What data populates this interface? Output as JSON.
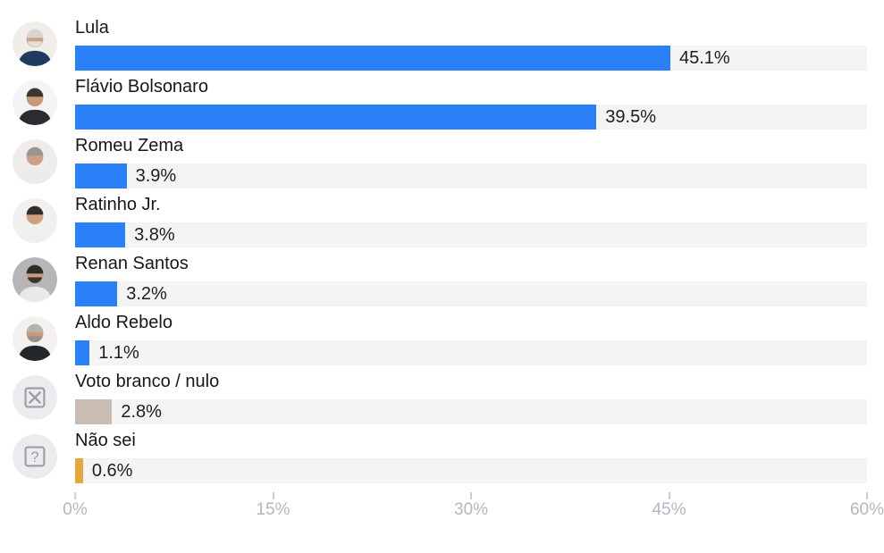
{
  "chart_data": {
    "type": "bar",
    "orientation": "horizontal",
    "title": "",
    "xlabel": "",
    "ylabel": "",
    "xlim": [
      0,
      60
    ],
    "grid": false,
    "legend": false,
    "track_color": "#f4f4f2",
    "colors": {
      "candidate_bar": "#2a80f6",
      "blank_null_bar": "#c9bcb2",
      "dont_know_bar": "#e6a83e",
      "axis_label": "#b2b6c0",
      "tick_mark": "#c9ccd3"
    },
    "x_ticks": [
      {
        "value": 0,
        "label": "0%"
      },
      {
        "value": 15,
        "label": "15%"
      },
      {
        "value": 30,
        "label": "30%"
      },
      {
        "value": 45,
        "label": "45%"
      },
      {
        "value": 60,
        "label": "60%"
      }
    ],
    "categories": [
      "Lula",
      "Flávio Bolsonaro",
      "Romeu Zema",
      "Ratinho Jr.",
      "Renan Santos",
      "Aldo Rebelo",
      "Voto branco / nulo",
      "Não sei"
    ],
    "values": [
      45.1,
      39.5,
      3.9,
      3.8,
      3.2,
      1.1,
      2.8,
      0.6
    ],
    "rows": [
      {
        "category": "Lula",
        "value": 45.1,
        "value_label": "45.1%",
        "bar_color": "#2a80f6",
        "avatar": {
          "kind": "photo",
          "name": "lula-avatar",
          "bg": "#f1eeea",
          "hair": "#d9d4cd",
          "skin": "#c9a184",
          "beard": "#e4dfd8",
          "torso": "#1e3a5f"
        }
      },
      {
        "category": "Flávio Bolsonaro",
        "value": 39.5,
        "value_label": "39.5%",
        "bar_color": "#2a80f6",
        "avatar": {
          "kind": "photo",
          "name": "flavio-bolsonaro-avatar",
          "bg": "#f4f4f6",
          "hair": "#3a352f",
          "skin": "#c89a76",
          "torso": "#2b2b30"
        }
      },
      {
        "category": "Romeu Zema",
        "value": 3.9,
        "value_label": "3.9%",
        "bar_color": "#2a80f6",
        "avatar": {
          "kind": "photo",
          "name": "romeu-zema-avatar",
          "bg": "#eeedeb",
          "hair": "#99968f",
          "skin": "#cda184",
          "torso": "#ecebe9"
        }
      },
      {
        "category": "Ratinho Jr.",
        "value": 3.8,
        "value_label": "3.8%",
        "bar_color": "#2a80f6",
        "avatar": {
          "kind": "photo",
          "name": "ratinho-jr-avatar",
          "bg": "#f1f0ee",
          "hair": "#342e29",
          "skin": "#cf9f80",
          "torso": "#f0efed"
        }
      },
      {
        "category": "Renan Santos",
        "value": 3.2,
        "value_label": "3.2%",
        "bar_color": "#2a80f6",
        "avatar": {
          "kind": "photo",
          "name": "renan-santos-avatar",
          "bg": "#b6b6b8",
          "hair": "#2e2a26",
          "skin": "#c79c7e",
          "beard": "#3b332d",
          "torso": "#e9e9e9"
        }
      },
      {
        "category": "Aldo Rebelo",
        "value": 1.1,
        "value_label": "1.1%",
        "bar_color": "#2a80f6",
        "avatar": {
          "kind": "photo",
          "name": "aldo-rebelo-avatar",
          "bg": "#f2f1ef",
          "hair": "#b6b1aa",
          "skin": "#c69a7c",
          "beard": "#97918a",
          "torso": "#24272c"
        }
      },
      {
        "category": "Voto branco / nulo",
        "value": 2.8,
        "value_label": "2.8%",
        "bar_color": "#c9bcb2",
        "avatar": {
          "kind": "icon",
          "icon": "x-square-icon",
          "bg": "#ececee",
          "fg": "#9b9ba2"
        }
      },
      {
        "category": "Não sei",
        "value": 0.6,
        "value_label": "0.6%",
        "bar_color": "#e6a83e",
        "avatar": {
          "kind": "icon",
          "icon": "question-square-icon",
          "bg": "#ececee",
          "fg": "#9b9ba2"
        }
      }
    ]
  }
}
